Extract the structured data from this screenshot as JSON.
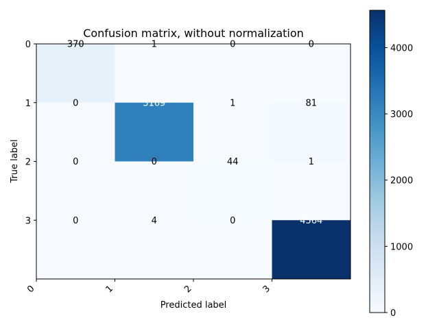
{
  "chart_data": {
    "type": "heatmap",
    "title": "Confusion matrix, without normalization",
    "xlabel": "Predicted label",
    "ylabel": "True label",
    "x_categories": [
      "0",
      "1",
      "2",
      "3"
    ],
    "y_categories": [
      "0",
      "1",
      "2",
      "3"
    ],
    "values": [
      [
        370,
        1,
        0,
        0
      ],
      [
        0,
        3169,
        1,
        81
      ],
      [
        0,
        0,
        44,
        1
      ],
      [
        0,
        4,
        0,
        4564
      ]
    ],
    "colormap": "Blues",
    "colormap_stops": [
      "#f7fbff",
      "#deebf7",
      "#c6dbef",
      "#9ecae1",
      "#6baed6",
      "#4292c6",
      "#2171b5",
      "#08519c",
      "#08306b"
    ],
    "value_range": [
      0,
      4564
    ],
    "colorbar_ticks": [
      0,
      1000,
      2000,
      3000,
      4000
    ],
    "colorbar_tick_labels": [
      "0",
      "1000",
      "2000",
      "3000",
      "4000"
    ],
    "text_threshold": 2282,
    "text_color_light": "#ffffff",
    "text_color_dark": "#000000"
  }
}
